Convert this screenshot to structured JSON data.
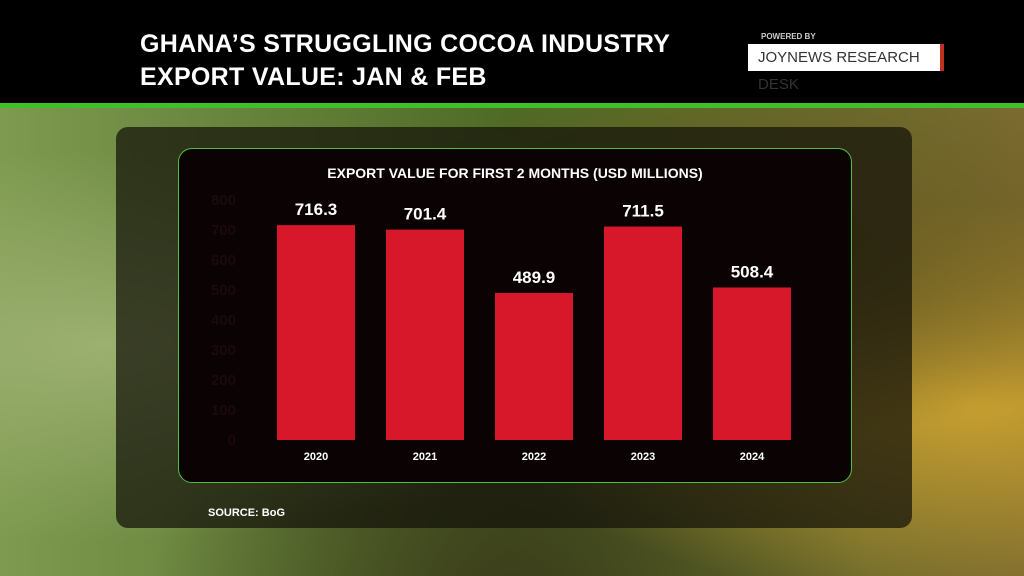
{
  "header": {
    "title_line1": "GHANA’S STRUGGLING COCOA INDUSTRY",
    "title_line2": "EXPORT VALUE: JAN & FEB",
    "powered_by": "POWERED BY",
    "brand": "JOYNEWS RESEARCH DESK"
  },
  "source": "SOURCE: BoG",
  "colors": {
    "bar": "#d7182a",
    "accent": "#3fbf2a"
  },
  "chart_data": {
    "type": "bar",
    "title": "EXPORT VALUE FOR FIRST 2 MONTHS (USD MILLIONS)",
    "categories": [
      "2020",
      "2021",
      "2022",
      "2023",
      "2024"
    ],
    "values": [
      716.3,
      701.4,
      489.9,
      711.5,
      508.4
    ],
    "labels": [
      "716.3",
      "701.4",
      "489.9",
      "711.5",
      "508.4"
    ],
    "yticks": [
      "0",
      "100",
      "200",
      "300",
      "400",
      "500",
      "600",
      "700",
      "800"
    ],
    "ylim": [
      0,
      800
    ],
    "xlabel": "",
    "ylabel": ""
  }
}
